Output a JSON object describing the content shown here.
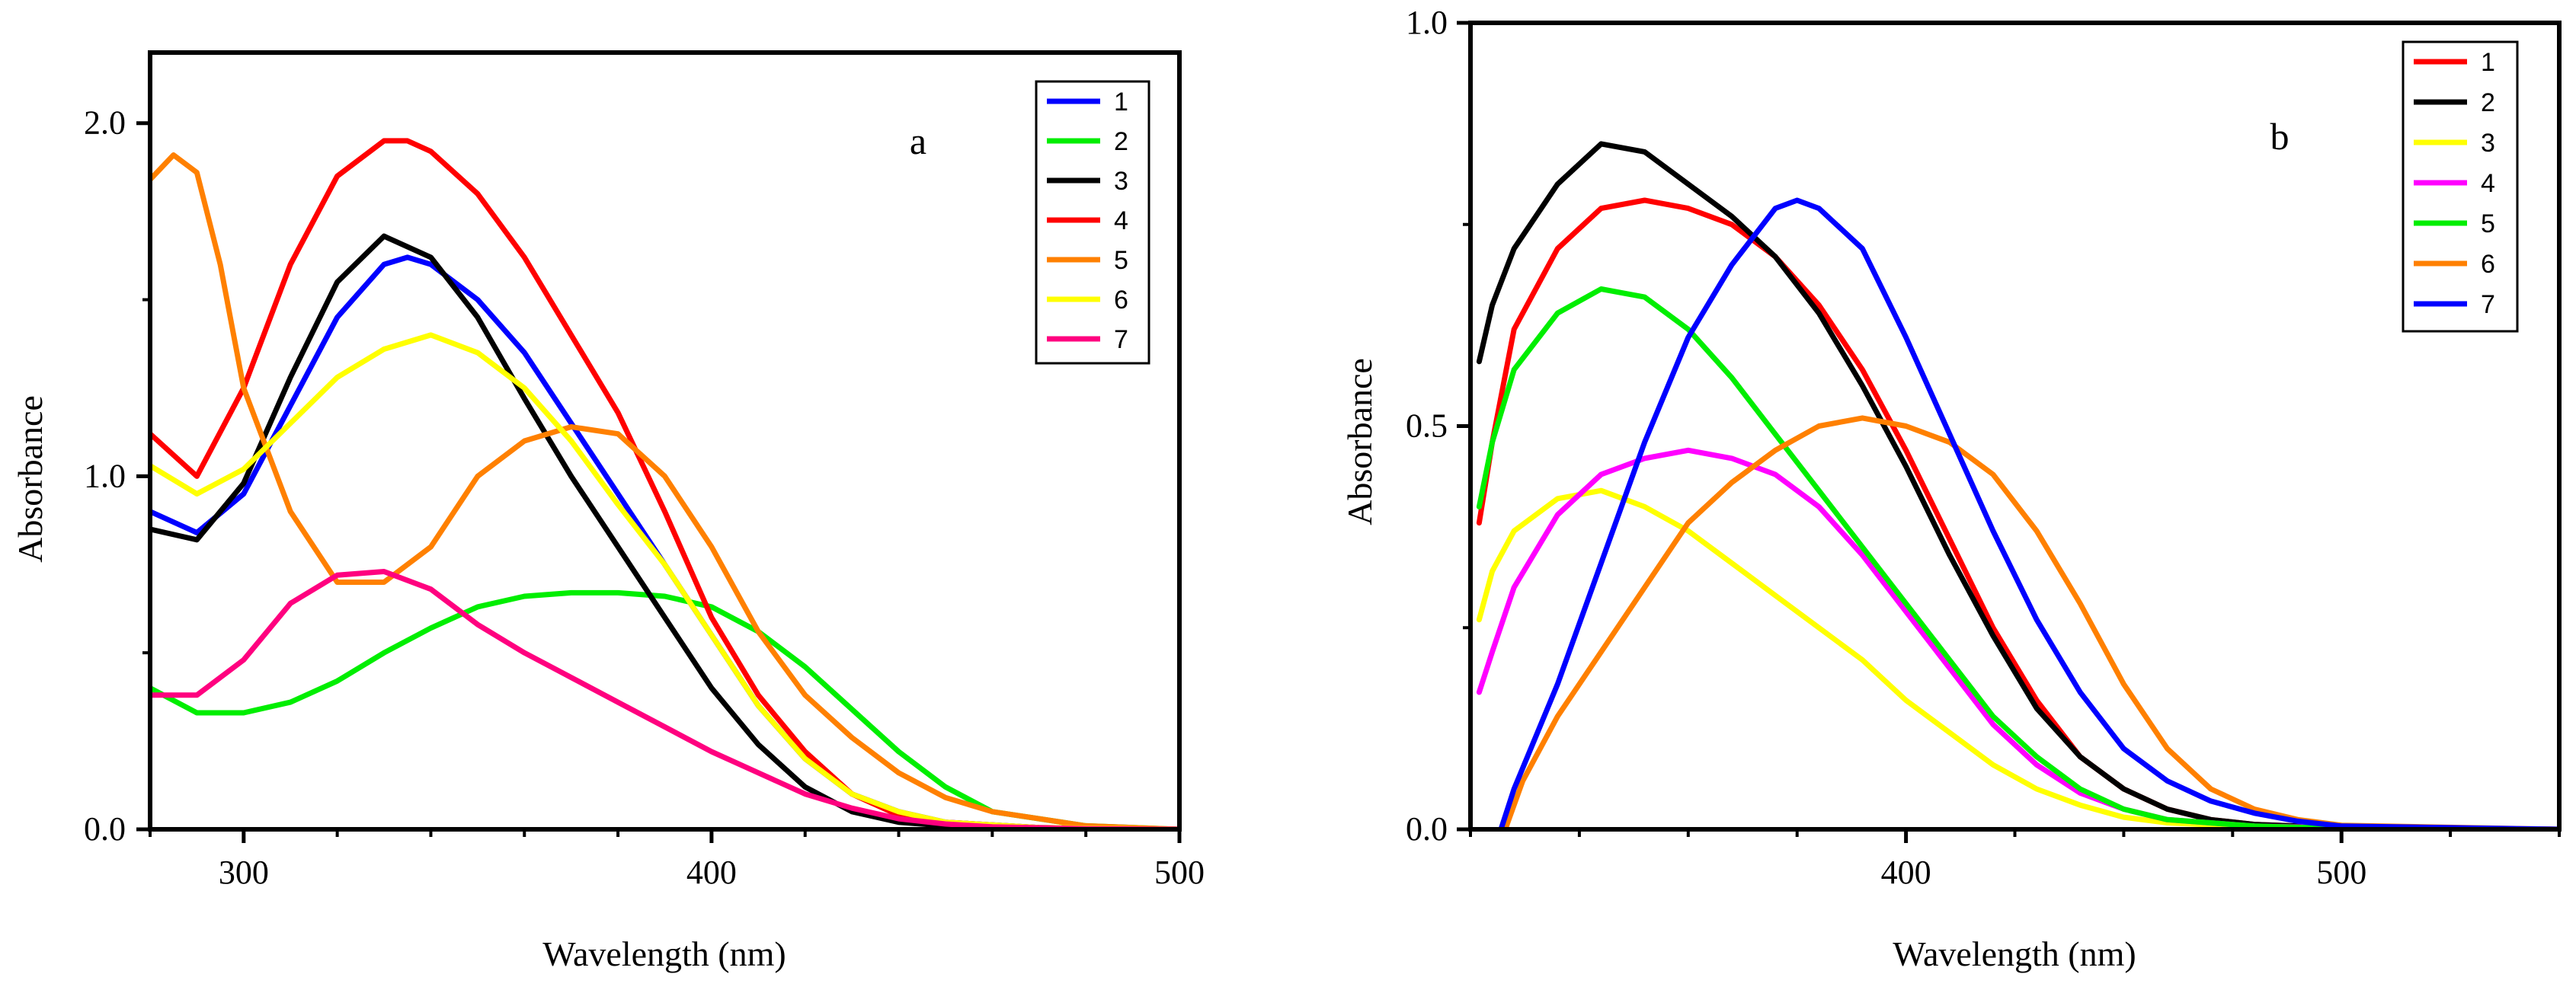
{
  "chart_data": [
    {
      "panel": "a",
      "type": "line",
      "xlabel": "Wavelength (nm)",
      "ylabel": "Absorbance",
      "xlim": [
        280,
        500
      ],
      "ylim": [
        0,
        2.2
      ],
      "xticks": [
        300,
        400,
        500
      ],
      "xtick_labels": [
        "300",
        "400",
        "500"
      ],
      "yticks": [
        0,
        1,
        2
      ],
      "ytick_labels": [
        "0.0",
        "1.0",
        "2.0"
      ],
      "legend_position": "top-right",
      "series": [
        {
          "name": "1",
          "color": "#0000ff",
          "x": [
            280,
            290,
            300,
            310,
            320,
            330,
            335,
            340,
            350,
            360,
            370,
            380,
            390,
            400,
            410,
            420,
            430,
            440,
            450,
            470,
            500
          ],
          "y": [
            0.9,
            0.84,
            0.95,
            1.2,
            1.45,
            1.6,
            1.62,
            1.6,
            1.5,
            1.35,
            1.15,
            0.95,
            0.75,
            0.55,
            0.35,
            0.2,
            0.1,
            0.05,
            0.02,
            0.005,
            0.0
          ]
        },
        {
          "name": "2",
          "color": "#00ee00",
          "x": [
            280,
            290,
            300,
            310,
            320,
            330,
            340,
            350,
            360,
            370,
            380,
            390,
            400,
            410,
            420,
            430,
            440,
            450,
            460,
            480,
            500
          ],
          "y": [
            0.4,
            0.33,
            0.33,
            0.36,
            0.42,
            0.5,
            0.57,
            0.63,
            0.66,
            0.67,
            0.67,
            0.66,
            0.63,
            0.56,
            0.46,
            0.34,
            0.22,
            0.12,
            0.05,
            0.01,
            0.0
          ]
        },
        {
          "name": "3",
          "color": "#000000",
          "x": [
            280,
            290,
            300,
            310,
            320,
            330,
            340,
            350,
            360,
            370,
            380,
            390,
            400,
            410,
            420,
            430,
            440,
            450,
            470,
            500
          ],
          "y": [
            0.85,
            0.82,
            0.98,
            1.28,
            1.55,
            1.68,
            1.62,
            1.45,
            1.22,
            1.0,
            0.8,
            0.6,
            0.4,
            0.24,
            0.12,
            0.05,
            0.02,
            0.01,
            0.0,
            0.0
          ]
        },
        {
          "name": "4",
          "color": "#ff0000",
          "x": [
            280,
            290,
            300,
            310,
            320,
            330,
            335,
            340,
            350,
            360,
            370,
            380,
            390,
            400,
            410,
            420,
            430,
            440,
            450,
            470,
            500
          ],
          "y": [
            1.12,
            1.0,
            1.25,
            1.6,
            1.85,
            1.95,
            1.95,
            1.92,
            1.8,
            1.62,
            1.4,
            1.18,
            0.9,
            0.6,
            0.38,
            0.22,
            0.1,
            0.04,
            0.02,
            0.005,
            0.0
          ]
        },
        {
          "name": "5",
          "color": "#ff8000",
          "x": [
            280,
            285,
            290,
            295,
            300,
            310,
            320,
            330,
            340,
            350,
            360,
            370,
            380,
            390,
            400,
            410,
            420,
            430,
            440,
            450,
            460,
            470,
            480,
            500
          ],
          "y": [
            1.84,
            1.91,
            1.86,
            1.6,
            1.25,
            0.9,
            0.7,
            0.7,
            0.8,
            1.0,
            1.1,
            1.14,
            1.12,
            1.0,
            0.8,
            0.56,
            0.38,
            0.26,
            0.16,
            0.09,
            0.05,
            0.03,
            0.01,
            0.0
          ]
        },
        {
          "name": "6",
          "color": "#ffff00",
          "x": [
            280,
            290,
            300,
            310,
            320,
            330,
            340,
            350,
            360,
            370,
            380,
            390,
            400,
            410,
            420,
            430,
            440,
            450,
            470,
            500
          ],
          "y": [
            1.03,
            0.95,
            1.02,
            1.15,
            1.28,
            1.36,
            1.4,
            1.35,
            1.25,
            1.1,
            0.92,
            0.75,
            0.55,
            0.35,
            0.2,
            0.1,
            0.05,
            0.02,
            0.005,
            0.0
          ]
        },
        {
          "name": "7",
          "color": "#ff007f",
          "x": [
            280,
            290,
            300,
            310,
            320,
            330,
            340,
            350,
            360,
            370,
            380,
            390,
            400,
            410,
            420,
            430,
            440,
            450,
            460,
            480,
            500
          ],
          "y": [
            0.38,
            0.38,
            0.48,
            0.64,
            0.72,
            0.73,
            0.68,
            0.58,
            0.5,
            0.43,
            0.36,
            0.29,
            0.22,
            0.16,
            0.1,
            0.06,
            0.03,
            0.015,
            0.007,
            0.002,
            0.0
          ]
        }
      ]
    },
    {
      "panel": "b",
      "type": "line",
      "xlabel": "Wavelength (nm)",
      "ylabel": "Absorbance",
      "xlim": [
        300,
        550
      ],
      "ylim": [
        0,
        1.0
      ],
      "xticks": [
        400,
        500
      ],
      "xtick_labels": [
        "400",
        "500"
      ],
      "yticks": [
        0,
        0.5,
        1.0
      ],
      "ytick_labels": [
        "0.0",
        "0.5",
        "1.0"
      ],
      "legend_position": "top-right",
      "series": [
        {
          "name": "1",
          "color": "#ff0000",
          "x": [
            302,
            305,
            310,
            320,
            330,
            340,
            350,
            360,
            370,
            380,
            390,
            400,
            410,
            420,
            430,
            440,
            450,
            460,
            470,
            480,
            500,
            550
          ],
          "y": [
            0.38,
            0.48,
            0.62,
            0.72,
            0.77,
            0.78,
            0.77,
            0.75,
            0.71,
            0.65,
            0.57,
            0.47,
            0.36,
            0.25,
            0.16,
            0.09,
            0.05,
            0.025,
            0.012,
            0.006,
            0.002,
            0.0
          ]
        },
        {
          "name": "2",
          "color": "#000000",
          "x": [
            302,
            305,
            310,
            320,
            330,
            340,
            350,
            360,
            370,
            380,
            390,
            400,
            410,
            420,
            430,
            440,
            450,
            460,
            470,
            480,
            500,
            550
          ],
          "y": [
            0.58,
            0.65,
            0.72,
            0.8,
            0.85,
            0.84,
            0.8,
            0.76,
            0.71,
            0.64,
            0.55,
            0.45,
            0.34,
            0.24,
            0.15,
            0.09,
            0.05,
            0.025,
            0.012,
            0.006,
            0.002,
            0.0
          ]
        },
        {
          "name": "3",
          "color": "#ffff00",
          "x": [
            302,
            305,
            310,
            320,
            330,
            340,
            350,
            360,
            370,
            380,
            390,
            400,
            410,
            420,
            430,
            440,
            450,
            460,
            480,
            500,
            550
          ],
          "y": [
            0.26,
            0.32,
            0.37,
            0.41,
            0.42,
            0.4,
            0.37,
            0.33,
            0.29,
            0.25,
            0.21,
            0.16,
            0.12,
            0.08,
            0.05,
            0.03,
            0.015,
            0.008,
            0.003,
            0.001,
            0.0
          ]
        },
        {
          "name": "4",
          "color": "#ff00ff",
          "x": [
            302,
            305,
            310,
            320,
            330,
            340,
            350,
            360,
            370,
            380,
            390,
            400,
            410,
            420,
            430,
            440,
            450,
            460,
            480,
            500,
            550
          ],
          "y": [
            0.17,
            0.22,
            0.3,
            0.39,
            0.44,
            0.46,
            0.47,
            0.46,
            0.44,
            0.4,
            0.34,
            0.27,
            0.2,
            0.13,
            0.08,
            0.045,
            0.025,
            0.012,
            0.004,
            0.002,
            0.0
          ]
        },
        {
          "name": "5",
          "color": "#00ee00",
          "x": [
            302,
            305,
            310,
            320,
            330,
            340,
            350,
            360,
            370,
            380,
            390,
            400,
            410,
            420,
            430,
            440,
            450,
            460,
            480,
            500,
            550
          ],
          "y": [
            0.4,
            0.48,
            0.57,
            0.64,
            0.67,
            0.66,
            0.62,
            0.56,
            0.49,
            0.42,
            0.35,
            0.28,
            0.21,
            0.14,
            0.09,
            0.05,
            0.025,
            0.012,
            0.004,
            0.001,
            0.0
          ]
        },
        {
          "name": "6",
          "color": "#ff8000",
          "x": [
            308,
            312,
            320,
            330,
            340,
            350,
            360,
            370,
            380,
            390,
            400,
            410,
            420,
            430,
            440,
            450,
            460,
            470,
            480,
            490,
            500,
            550
          ],
          "y": [
            0.0,
            0.06,
            0.14,
            0.22,
            0.3,
            0.38,
            0.43,
            0.47,
            0.5,
            0.51,
            0.5,
            0.48,
            0.44,
            0.37,
            0.28,
            0.18,
            0.1,
            0.05,
            0.025,
            0.012,
            0.005,
            0.0
          ]
        },
        {
          "name": "7",
          "color": "#0000ff",
          "x": [
            307,
            310,
            320,
            330,
            340,
            350,
            360,
            370,
            375,
            380,
            390,
            400,
            410,
            420,
            430,
            440,
            450,
            460,
            470,
            480,
            490,
            500,
            550
          ],
          "y": [
            0.0,
            0.05,
            0.18,
            0.33,
            0.48,
            0.61,
            0.7,
            0.77,
            0.78,
            0.77,
            0.72,
            0.61,
            0.49,
            0.37,
            0.26,
            0.17,
            0.1,
            0.06,
            0.035,
            0.02,
            0.01,
            0.004,
            0.0
          ]
        }
      ]
    }
  ]
}
